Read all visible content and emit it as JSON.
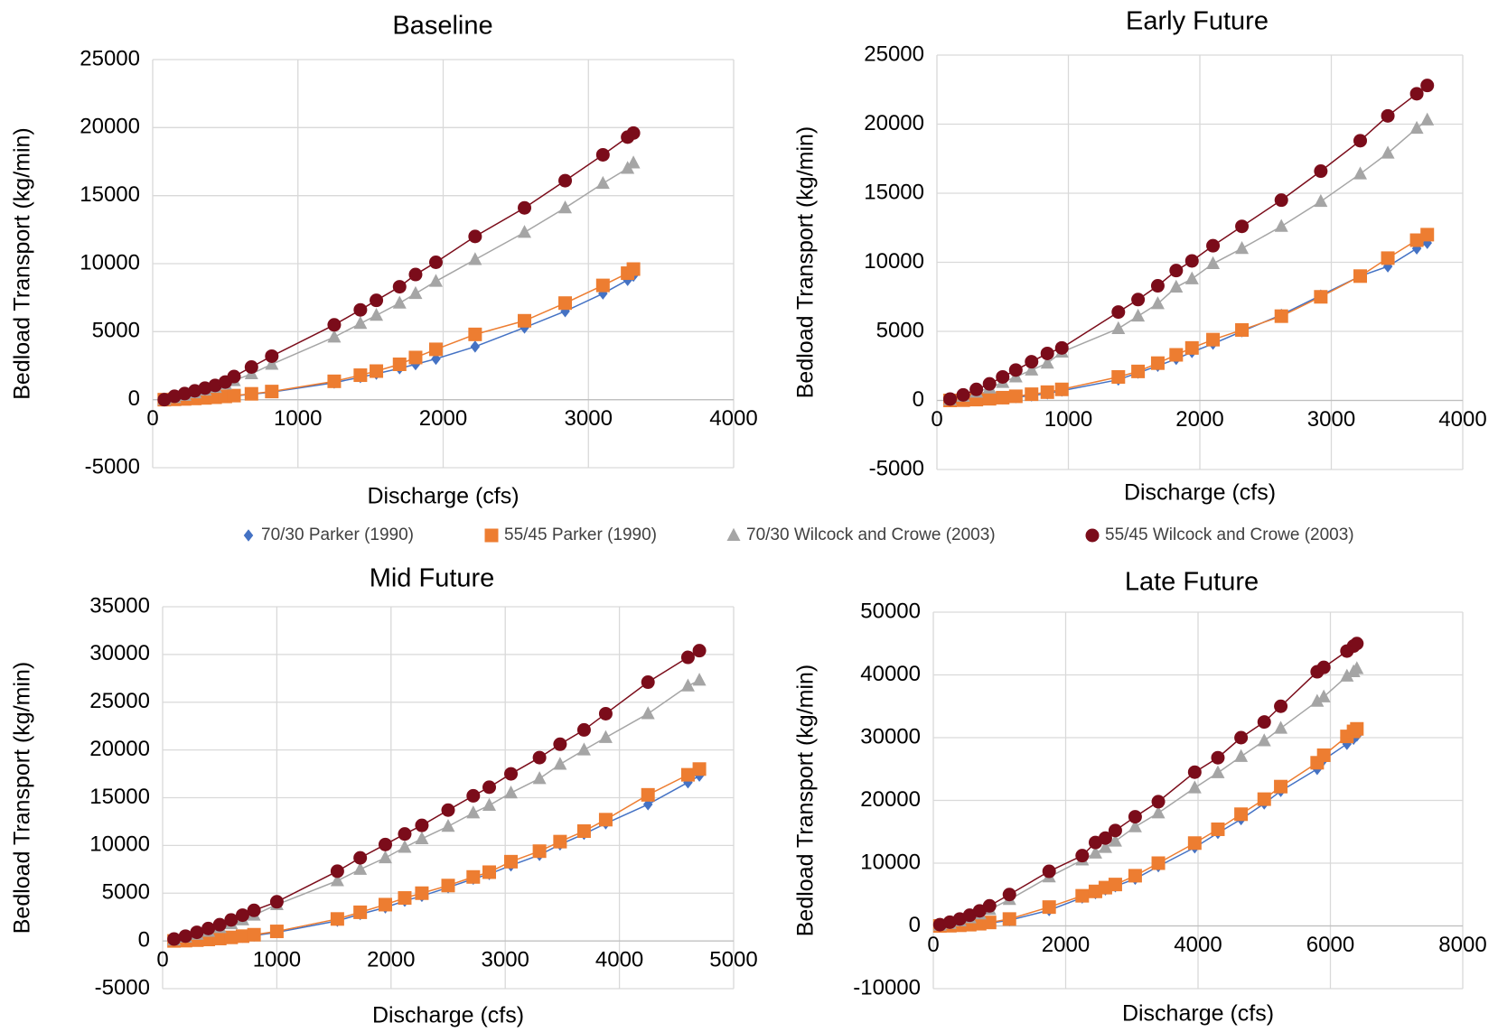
{
  "chart_data": [
    {
      "type": "scatter",
      "title": "Baseline",
      "x_label": "Discharge (cfs)",
      "y_label": "Bedload Transport (kg/min)",
      "xlim": [
        0,
        4000
      ],
      "ylim": [
        -5000,
        25000
      ],
      "xticks": [
        0,
        1000,
        2000,
        3000,
        4000
      ],
      "yticks": [
        -5000,
        0,
        5000,
        10000,
        15000,
        20000,
        25000
      ],
      "grid": true,
      "series": [
        {
          "name": "70/30 Parker (1990)",
          "color": "#4472c4",
          "marker": "diamond",
          "x": [
            80,
            150,
            220,
            290,
            360,
            430,
            500,
            560,
            680,
            820,
            1250,
            1430,
            1540,
            1700,
            1810,
            1950,
            2220,
            2560,
            2840,
            3100,
            3270,
            3310
          ],
          "values": [
            0,
            20,
            50,
            80,
            120,
            170,
            220,
            280,
            400,
            560,
            1250,
            1650,
            1900,
            2300,
            2600,
            3000,
            3900,
            5300,
            6500,
            7800,
            8800,
            9100
          ]
        },
        {
          "name": "55/45 Parker (1990)",
          "color": "#ed7d31",
          "marker": "square",
          "x": [
            80,
            150,
            220,
            290,
            360,
            430,
            500,
            560,
            680,
            820,
            1250,
            1430,
            1540,
            1700,
            1810,
            1950,
            2220,
            2560,
            2840,
            3100,
            3270,
            3310
          ],
          "values": [
            0,
            25,
            55,
            90,
            130,
            180,
            240,
            300,
            430,
            600,
            1350,
            1800,
            2100,
            2600,
            3100,
            3700,
            4800,
            5800,
            7100,
            8400,
            9300,
            9600
          ]
        },
        {
          "name": "70/30 Wilcock and Crowe (2003)",
          "color": "#a5a5a5",
          "marker": "triangle",
          "x": [
            80,
            150,
            220,
            290,
            360,
            430,
            500,
            560,
            680,
            820,
            1250,
            1430,
            1540,
            1700,
            1810,
            1950,
            2220,
            2560,
            2840,
            3100,
            3270,
            3310
          ],
          "values": [
            0,
            150,
            320,
            500,
            700,
            900,
            1150,
            1400,
            1900,
            2600,
            4600,
            5600,
            6200,
            7100,
            7800,
            8700,
            10300,
            12300,
            14100,
            15900,
            17000,
            17400
          ]
        },
        {
          "name": "55/45 Wilcock and Crowe (2003)",
          "color": "#7b0c1a",
          "marker": "circle",
          "x": [
            80,
            150,
            220,
            290,
            360,
            430,
            500,
            560,
            680,
            820,
            1250,
            1430,
            1540,
            1700,
            1810,
            1950,
            2220,
            2560,
            2840,
            3100,
            3270,
            3310
          ],
          "values": [
            0,
            250,
            450,
            650,
            850,
            1050,
            1300,
            1700,
            2400,
            3200,
            5500,
            6600,
            7300,
            8300,
            9200,
            10100,
            12000,
            14100,
            16100,
            18000,
            19300,
            19600
          ]
        }
      ]
    },
    {
      "type": "scatter",
      "title": "Early Future",
      "x_label": "Discharge (cfs)",
      "y_label": "Bedload Transport (kg/min)",
      "xlim": [
        0,
        4000
      ],
      "ylim": [
        -5000,
        25000
      ],
      "xticks": [
        0,
        1000,
        2000,
        3000,
        4000
      ],
      "yticks": [
        -5000,
        0,
        5000,
        10000,
        15000,
        20000,
        25000
      ],
      "grid": true,
      "series": [
        {
          "color": "#4472c4",
          "marker": "diamond",
          "x": [
            100,
            200,
            300,
            400,
            500,
            600,
            720,
            840,
            950,
            1380,
            1530,
            1680,
            1820,
            1940,
            2100,
            2320,
            2620,
            2920,
            3220,
            3430,
            3650,
            3730
          ],
          "values": [
            0,
            10,
            40,
            90,
            150,
            230,
            350,
            500,
            700,
            1500,
            2000,
            2500,
            3000,
            3500,
            4100,
            5000,
            6200,
            7600,
            9000,
            9700,
            11000,
            11400
          ]
        },
        {
          "color": "#ed7d31",
          "marker": "square",
          "x": [
            100,
            200,
            300,
            400,
            500,
            600,
            720,
            840,
            950,
            1380,
            1530,
            1680,
            1820,
            1940,
            2100,
            2320,
            2620,
            2920,
            3220,
            3430,
            3650,
            3730
          ],
          "values": [
            0,
            20,
            60,
            120,
            200,
            300,
            450,
            600,
            800,
            1700,
            2100,
            2700,
            3300,
            3800,
            4400,
            5100,
            6100,
            7500,
            9000,
            10300,
            11600,
            12000
          ]
        },
        {
          "color": "#a5a5a5",
          "marker": "triangle",
          "x": [
            100,
            200,
            300,
            400,
            500,
            600,
            720,
            840,
            950,
            1380,
            1530,
            1680,
            1820,
            1940,
            2100,
            2320,
            2620,
            2920,
            3220,
            3430,
            3650,
            3730
          ],
          "values": [
            50,
            300,
            600,
            900,
            1300,
            1700,
            2200,
            2700,
            3500,
            5200,
            6100,
            7000,
            8200,
            8800,
            9900,
            11000,
            12600,
            14400,
            16400,
            17900,
            19700,
            20300
          ]
        },
        {
          "color": "#7b0c1a",
          "marker": "circle",
          "x": [
            100,
            200,
            300,
            400,
            500,
            600,
            720,
            840,
            950,
            1380,
            1530,
            1680,
            1820,
            1940,
            2100,
            2320,
            2620,
            2920,
            3220,
            3430,
            3650,
            3730
          ],
          "values": [
            100,
            400,
            800,
            1200,
            1700,
            2200,
            2800,
            3400,
            3800,
            6400,
            7300,
            8300,
            9400,
            10100,
            11200,
            12600,
            14500,
            16600,
            18800,
            20600,
            22200,
            22800
          ]
        }
      ]
    },
    {
      "type": "scatter",
      "title": "Mid Future",
      "x_label": "Discharge (cfs)",
      "y_label": "Bedload Transport (kg/min)",
      "xlim": [
        0,
        5000
      ],
      "ylim": [
        -5000,
        35000
      ],
      "xticks": [
        0,
        1000,
        2000,
        3000,
        4000,
        5000
      ],
      "yticks": [
        -5000,
        0,
        5000,
        10000,
        15000,
        20000,
        25000,
        30000,
        35000
      ],
      "grid": true,
      "series": [
        {
          "color": "#4472c4",
          "marker": "diamond",
          "x": [
            100,
            200,
            300,
            400,
            500,
            600,
            700,
            800,
            1000,
            1530,
            1730,
            1950,
            2120,
            2270,
            2500,
            2720,
            2860,
            3050,
            3300,
            3480,
            3690,
            3880,
            4250,
            4600,
            4700
          ],
          "values": [
            0,
            20,
            60,
            120,
            200,
            300,
            420,
            550,
            900,
            2100,
            2800,
            3500,
            4200,
            4700,
            5600,
            6500,
            7000,
            7900,
            9000,
            10100,
            11200,
            12300,
            14300,
            16600,
            17300
          ]
        },
        {
          "color": "#ed7d31",
          "marker": "square",
          "x": [
            100,
            200,
            300,
            400,
            500,
            600,
            700,
            800,
            1000,
            1530,
            1730,
            1950,
            2120,
            2270,
            2500,
            2720,
            2860,
            3050,
            3300,
            3480,
            3690,
            3880,
            4250,
            4600,
            4700
          ],
          "values": [
            0,
            30,
            80,
            150,
            250,
            370,
            500,
            650,
            1000,
            2300,
            3000,
            3800,
            4500,
            5000,
            5800,
            6700,
            7200,
            8300,
            9400,
            10400,
            11500,
            12700,
            15300,
            17400,
            18000
          ]
        },
        {
          "color": "#a5a5a5",
          "marker": "triangle",
          "x": [
            100,
            200,
            300,
            400,
            500,
            600,
            700,
            800,
            1000,
            1530,
            1730,
            1950,
            2120,
            2270,
            2500,
            2720,
            2860,
            3050,
            3300,
            3480,
            3690,
            3880,
            4250,
            4600,
            4700
          ],
          "values": [
            100,
            400,
            700,
            1000,
            1400,
            1800,
            2200,
            2700,
            3800,
            6300,
            7500,
            8700,
            9800,
            10700,
            12000,
            13400,
            14200,
            15500,
            17000,
            18500,
            20000,
            21300,
            23800,
            26700,
            27300
          ]
        },
        {
          "color": "#7b0c1a",
          "marker": "circle",
          "x": [
            100,
            200,
            300,
            400,
            500,
            600,
            700,
            800,
            1000,
            1530,
            1730,
            1950,
            2120,
            2270,
            2500,
            2720,
            2860,
            3050,
            3300,
            3480,
            3690,
            3880,
            4250,
            4600,
            4700
          ],
          "values": [
            200,
            500,
            900,
            1300,
            1700,
            2200,
            2700,
            3200,
            4100,
            7300,
            8700,
            10100,
            11200,
            12100,
            13700,
            15200,
            16100,
            17500,
            19200,
            20600,
            22100,
            23800,
            27100,
            29700,
            30400
          ]
        }
      ]
    },
    {
      "type": "scatter",
      "title": "Late Future",
      "x_label": "Discharge (cfs)",
      "y_label": "Bedload Transport (kg/min)",
      "xlim": [
        0,
        8000
      ],
      "ylim": [
        -10000,
        50000
      ],
      "xticks": [
        0,
        2000,
        4000,
        6000,
        8000
      ],
      "yticks": [
        -10000,
        0,
        10000,
        20000,
        30000,
        40000,
        50000
      ],
      "grid": true,
      "series": [
        {
          "color": "#4472c4",
          "marker": "diamond",
          "x": [
            100,
            250,
            400,
            550,
            700,
            850,
            1150,
            1750,
            2250,
            2450,
            2600,
            2750,
            3050,
            3400,
            3950,
            4300,
            4650,
            5000,
            5250,
            5800,
            5900,
            6250,
            6350,
            6400
          ],
          "values": [
            0,
            20,
            80,
            160,
            300,
            450,
            900,
            2500,
            4500,
            5200,
            5800,
            6300,
            7500,
            9500,
            12500,
            14800,
            17000,
            19500,
            21500,
            25000,
            26500,
            29000,
            29800,
            30300
          ]
        },
        {
          "color": "#ed7d31",
          "marker": "square",
          "x": [
            100,
            250,
            400,
            550,
            700,
            850,
            1150,
            1750,
            2250,
            2450,
            2600,
            2750,
            3050,
            3400,
            3950,
            4300,
            4650,
            5000,
            5250,
            5800,
            5900,
            6250,
            6350,
            6400
          ],
          "values": [
            0,
            30,
            100,
            200,
            350,
            550,
            1100,
            3000,
            4800,
            5500,
            6100,
            6600,
            8000,
            10000,
            13200,
            15400,
            17800,
            20200,
            22200,
            26000,
            27200,
            30200,
            31000,
            31400
          ]
        },
        {
          "color": "#a5a5a5",
          "marker": "triangle",
          "x": [
            100,
            250,
            400,
            550,
            700,
            850,
            1150,
            1750,
            2250,
            2450,
            2600,
            2750,
            3050,
            3400,
            3950,
            4300,
            4650,
            5000,
            5250,
            5800,
            5900,
            6250,
            6350,
            6400
          ],
          "values": [
            100,
            400,
            800,
            1300,
            1900,
            2600,
            4200,
            7800,
            10500,
            11600,
            12500,
            13500,
            15800,
            18000,
            22000,
            24400,
            27000,
            29500,
            31500,
            35800,
            36500,
            39800,
            40500,
            41000
          ]
        },
        {
          "color": "#7b0c1a",
          "marker": "circle",
          "x": [
            100,
            250,
            400,
            550,
            700,
            850,
            1150,
            1750,
            2250,
            2450,
            2600,
            2750,
            3050,
            3400,
            3950,
            4300,
            4650,
            5000,
            5250,
            5800,
            5900,
            6250,
            6350,
            6400
          ],
          "values": [
            200,
            600,
            1100,
            1700,
            2400,
            3200,
            5000,
            8700,
            11200,
            13300,
            14000,
            15200,
            17400,
            19800,
            24500,
            26800,
            30000,
            32500,
            35000,
            40500,
            41200,
            43800,
            44600,
            45000
          ]
        }
      ]
    }
  ]
}
